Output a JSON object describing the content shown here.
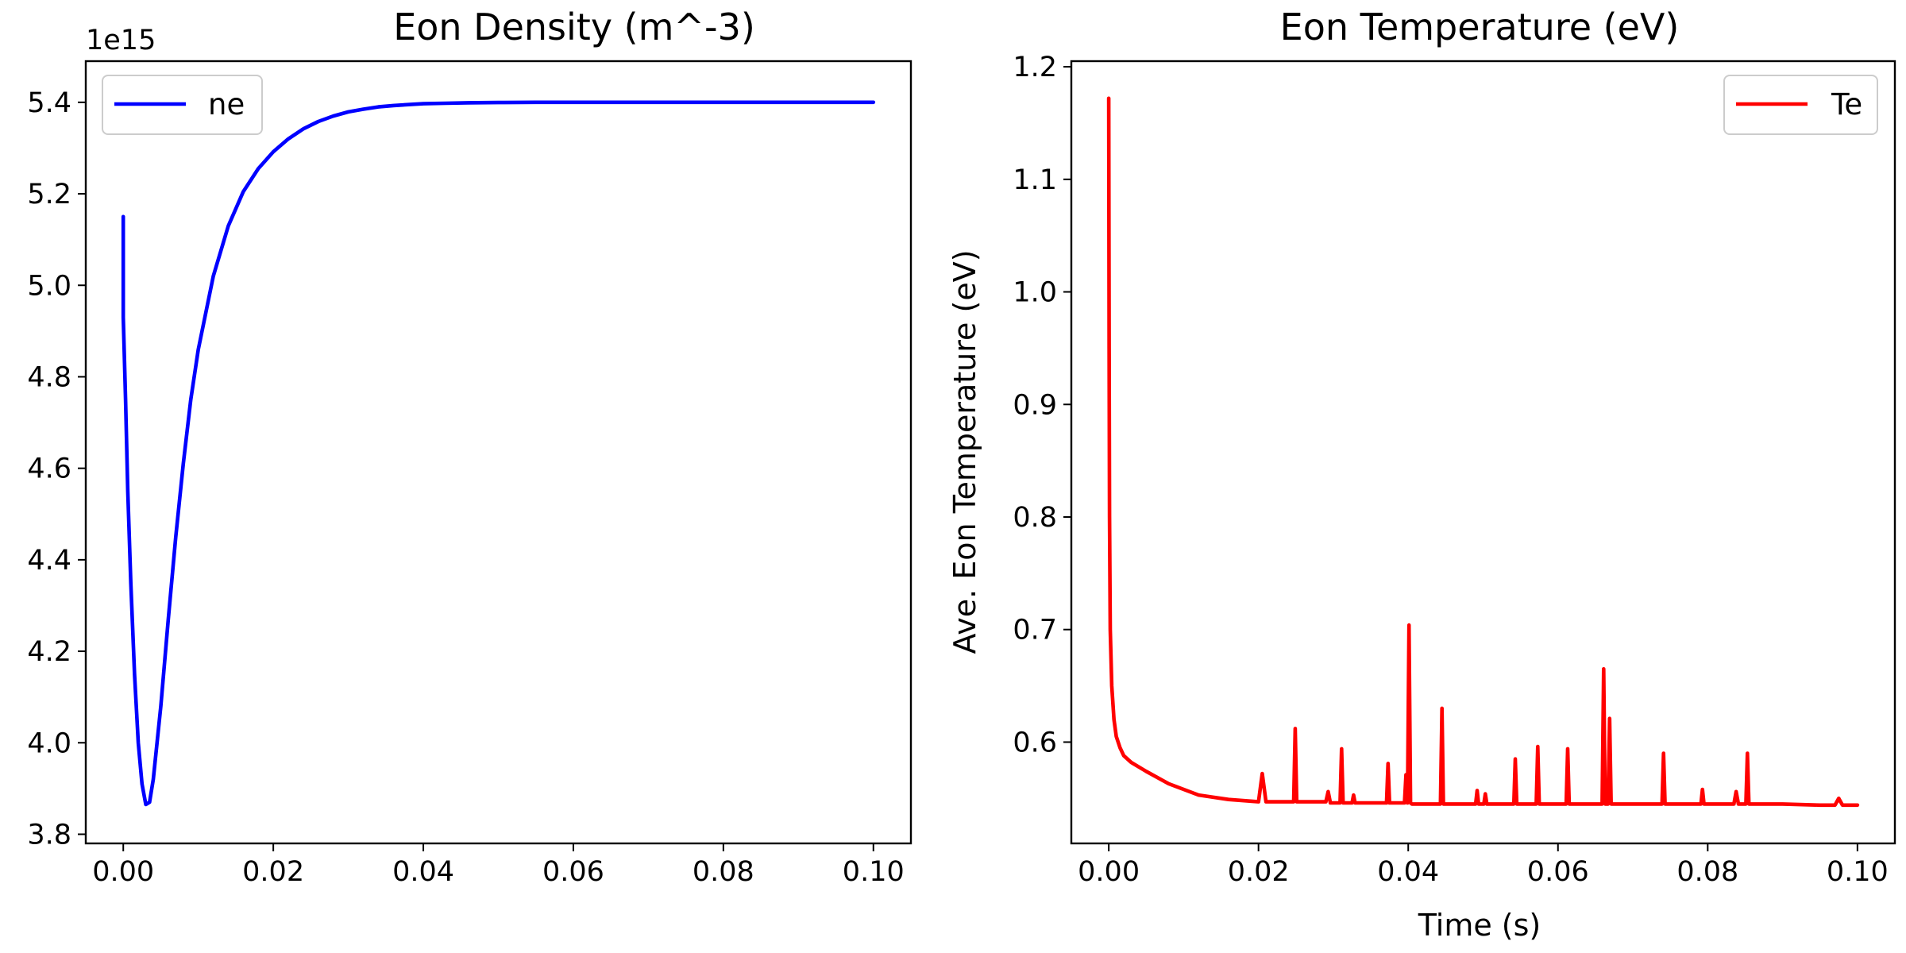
{
  "chart_data": [
    {
      "type": "line",
      "title": "Eon Density (m^-3)",
      "xlabel": "",
      "ylabel": "",
      "offset_label": "1e15",
      "xlim": [
        -0.005,
        0.105
      ],
      "ylim": [
        3.78,
        5.49
      ],
      "xticks": [
        0.0,
        0.02,
        0.04,
        0.06,
        0.08,
        0.1
      ],
      "xtick_labels": [
        "0.00",
        "0.02",
        "0.04",
        "0.06",
        "0.08",
        "0.10"
      ],
      "yticks": [
        3.8,
        4.0,
        4.2,
        4.4,
        4.6,
        4.8,
        5.0,
        5.2,
        5.4
      ],
      "ytick_labels": [
        "3.8",
        "4.0",
        "4.2",
        "4.4",
        "4.6",
        "4.8",
        "5.0",
        "5.2",
        "5.4"
      ],
      "grid": false,
      "legend": "upper-left",
      "series": [
        {
          "name": "ne",
          "color": "#0000ff",
          "x": [
            0.0,
            0.0,
            5e-05,
            0.0003,
            0.0006,
            0.001,
            0.0015,
            0.002,
            0.0025,
            0.003,
            0.0035,
            0.004,
            0.005,
            0.006,
            0.007,
            0.008,
            0.009,
            0.01,
            0.012,
            0.014,
            0.016,
            0.018,
            0.02,
            0.022,
            0.024,
            0.026,
            0.028,
            0.03,
            0.032,
            0.034,
            0.036,
            0.038,
            0.04,
            0.043,
            0.046,
            0.05,
            0.055,
            0.06,
            0.065,
            0.07,
            0.08,
            0.09,
            0.1
          ],
          "y": [
            5.15,
            4.93,
            4.9,
            4.75,
            4.55,
            4.35,
            4.15,
            4.0,
            3.91,
            3.865,
            3.87,
            3.92,
            4.08,
            4.27,
            4.45,
            4.61,
            4.75,
            4.86,
            5.02,
            5.13,
            5.205,
            5.255,
            5.292,
            5.32,
            5.342,
            5.358,
            5.37,
            5.379,
            5.385,
            5.39,
            5.393,
            5.395,
            5.397,
            5.398,
            5.399,
            5.3995,
            5.4,
            5.4,
            5.4,
            5.4,
            5.4,
            5.4,
            5.4
          ]
        }
      ]
    },
    {
      "type": "line",
      "title": "Eon Temperature (eV)",
      "xlabel": "Time (s)",
      "ylabel": "Ave. Eon Temperature (eV)",
      "xlim": [
        -0.005,
        0.105
      ],
      "ylim": [
        0.51,
        1.205
      ],
      "xticks": [
        0.0,
        0.02,
        0.04,
        0.06,
        0.08,
        0.1
      ],
      "xtick_labels": [
        "0.00",
        "0.02",
        "0.04",
        "0.06",
        "0.08",
        "0.10"
      ],
      "yticks": [
        0.6,
        0.7,
        0.8,
        0.9,
        1.0,
        1.1,
        1.2
      ],
      "ytick_labels": [
        "0.6",
        "0.7",
        "0.8",
        "0.9",
        "1.0",
        "1.1",
        "1.2"
      ],
      "grid": false,
      "legend": "upper-right",
      "series": [
        {
          "name": "Te",
          "color": "#ff0000",
          "x": [
            0.0,
            5e-05,
            0.0001,
            0.0002,
            0.0004,
            0.0007,
            0.001,
            0.0015,
            0.002,
            0.003,
            0.005,
            0.008,
            0.012,
            0.016,
            0.02,
            0.0205,
            0.021,
            0.0247,
            0.0249,
            0.0251,
            0.029,
            0.0293,
            0.0296,
            0.0309,
            0.0311,
            0.0313,
            0.0325,
            0.0327,
            0.0329,
            0.0371,
            0.0373,
            0.0375,
            0.0395,
            0.0397,
            0.0399,
            0.0401,
            0.0403,
            0.0405,
            0.0443,
            0.0445,
            0.0447,
            0.049,
            0.0492,
            0.0494,
            0.0501,
            0.0503,
            0.0505,
            0.0541,
            0.0543,
            0.0545,
            0.0571,
            0.0573,
            0.0575,
            0.0611,
            0.0613,
            0.0615,
            0.0659,
            0.0661,
            0.0663,
            0.0667,
            0.0669,
            0.0671,
            0.0739,
            0.0741,
            0.0743,
            0.0791,
            0.0793,
            0.0795,
            0.0835,
            0.0838,
            0.0841,
            0.0851,
            0.0853,
            0.0855,
            0.09,
            0.095,
            0.097,
            0.0975,
            0.098,
            0.1
          ],
          "y": [
            1.172,
            0.95,
            0.8,
            0.7,
            0.65,
            0.62,
            0.605,
            0.595,
            0.588,
            0.582,
            0.574,
            0.563,
            0.553,
            0.549,
            0.547,
            0.572,
            0.547,
            0.547,
            0.612,
            0.547,
            0.547,
            0.556,
            0.546,
            0.546,
            0.594,
            0.546,
            0.546,
            0.553,
            0.546,
            0.546,
            0.581,
            0.546,
            0.546,
            0.571,
            0.546,
            0.704,
            0.546,
            0.545,
            0.545,
            0.63,
            0.545,
            0.545,
            0.557,
            0.545,
            0.545,
            0.554,
            0.545,
            0.545,
            0.585,
            0.545,
            0.545,
            0.596,
            0.545,
            0.545,
            0.594,
            0.545,
            0.545,
            0.665,
            0.545,
            0.545,
            0.621,
            0.545,
            0.545,
            0.59,
            0.545,
            0.545,
            0.558,
            0.545,
            0.545,
            0.556,
            0.545,
            0.545,
            0.59,
            0.545,
            0.545,
            0.544,
            0.544,
            0.55,
            0.544,
            0.544
          ]
        }
      ]
    }
  ]
}
